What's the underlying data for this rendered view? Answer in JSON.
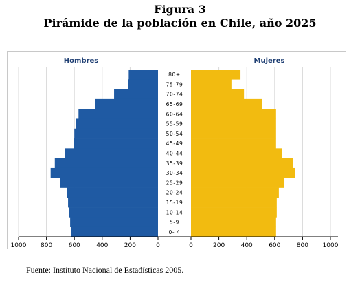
{
  "figure": {
    "title_line1": "Figura 3",
    "title_line2": "Pirámide de la población en Chile, año 2025",
    "source": "Fuente: Instituto Nacional de Estadísticas 2005."
  },
  "chart_data": {
    "type": "bar",
    "orientation": "horizontal",
    "population_pyramid": true,
    "categories": [
      "80+",
      "75-79",
      "70-74",
      "65-69",
      "60-64",
      "55-59",
      "50-54",
      "45-49",
      "40-44",
      "35-39",
      "30-34",
      "25-29",
      "20-24",
      "15-19",
      "10-14",
      "5-9",
      "0-4"
    ],
    "category_labels": [
      "80+",
      "75-79",
      "70-74",
      "65-69",
      "60-64",
      "55-59",
      "50-54",
      "45-49",
      "40-44",
      "35-39",
      "30-34",
      "25-29",
      "20-24",
      "15-19",
      "10-14",
      "5-9",
      "0- 4"
    ],
    "series": [
      {
        "name": "Hombres",
        "color": "#1f5aa3",
        "values": [
          210,
          215,
          315,
          450,
          570,
          590,
          600,
          605,
          665,
          740,
          770,
          700,
          655,
          645,
          640,
          630,
          625
        ]
      },
      {
        "name": "Mujeres",
        "color": "#f2bb10",
        "values": [
          355,
          290,
          380,
          510,
          610,
          610,
          610,
          610,
          655,
          730,
          745,
          670,
          630,
          615,
          615,
          610,
          610
        ]
      }
    ],
    "xlim": [
      0,
      1000
    ],
    "x_ticks": [
      "1000",
      "800",
      "600",
      "400",
      "200",
      "0",
      "0",
      "200",
      "400",
      "600",
      "800",
      "1000"
    ],
    "grid": true,
    "legend": "top"
  }
}
